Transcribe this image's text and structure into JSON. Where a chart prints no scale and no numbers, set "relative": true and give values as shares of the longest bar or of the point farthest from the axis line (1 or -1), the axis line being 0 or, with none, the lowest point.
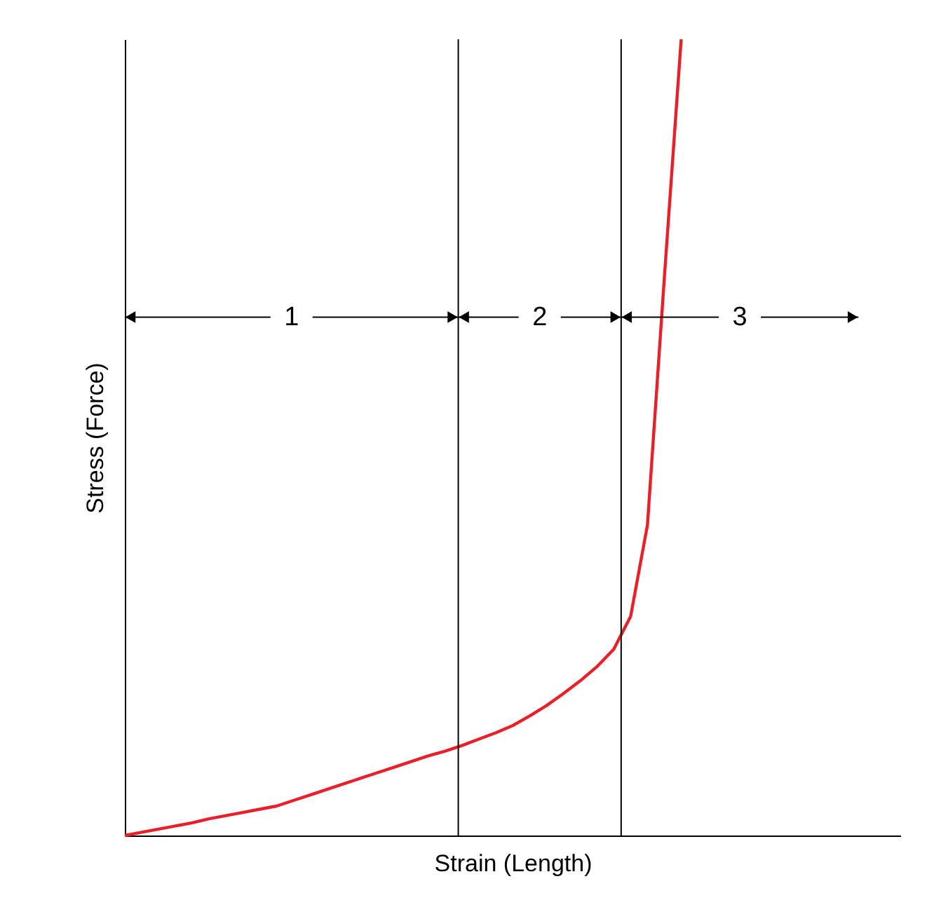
{
  "chart_data": {
    "type": "line",
    "relative": true,
    "xlabel": "Strain (Length)",
    "ylabel": "Stress (Force)",
    "tick_labels": false,
    "grid": false,
    "legend": false,
    "categories": [
      null,
      null,
      null,
      null,
      null,
      null,
      null,
      null,
      null,
      null,
      null,
      null,
      null,
      null,
      null,
      null,
      null,
      null,
      null,
      null,
      null,
      null,
      null,
      null,
      null,
      null,
      null,
      null,
      null,
      null,
      null,
      null,
      null,
      null,
      null,
      null,
      null,
      null,
      null,
      null,
      null,
      null,
      null,
      null,
      null,
      null,
      null
    ],
    "series": [
      {
        "color": "#e8202a",
        "values": [
          0,
          0.004,
          0.008,
          0.012,
          0.016,
          0.021,
          0.025,
          0.029,
          0.033,
          0.037,
          0.044,
          0.051,
          0.058,
          0.065,
          0.072,
          0.079,
          0.086,
          0.093,
          0.1,
          0.106,
          0.113,
          0.121,
          0.129,
          0.138,
          0.15,
          0.163,
          0.178,
          0.194,
          0.212,
          0.234,
          0.275,
          0.39,
          0.7,
          1.0,
          null,
          null,
          null,
          null,
          null,
          null,
          null,
          null,
          null,
          null,
          null,
          null,
          null
        ]
      }
    ],
    "annotations": [
      "1",
      "2",
      "3"
    ]
  }
}
